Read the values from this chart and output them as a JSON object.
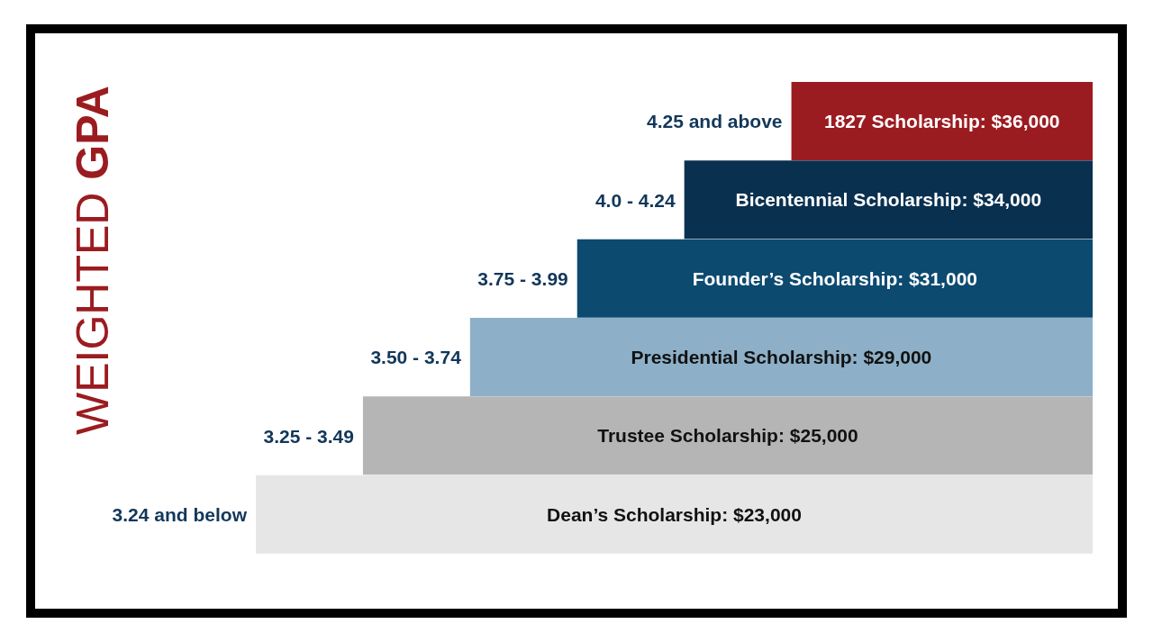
{
  "chart_data": {
    "type": "other",
    "ylabel": "WEIGHTED GPA",
    "categories": [
      "4.25 and above",
      "4.0 - 4.24",
      "3.75 - 3.99",
      "3.50 - 3.74",
      "3.25 - 3.49",
      "3.24 and below"
    ],
    "values": [
      36000,
      34000,
      31000,
      29000,
      25000,
      23000
    ],
    "colors": [
      "#9b1c20",
      "#0a3050",
      "#0c4a70",
      "#8db0c8",
      "#b5b5b5",
      "#e6e6e6"
    ],
    "value_labels": [
      "1827 Scholarship: $36,000",
      "Bicentennial Scholarship: $34,000",
      "Founder’s Scholarship: $31,000",
      "Presidential Scholarship: $29,000",
      "Trustee Scholarship: $25,000",
      "Dean’s Scholarship: $23,000"
    ]
  }
}
